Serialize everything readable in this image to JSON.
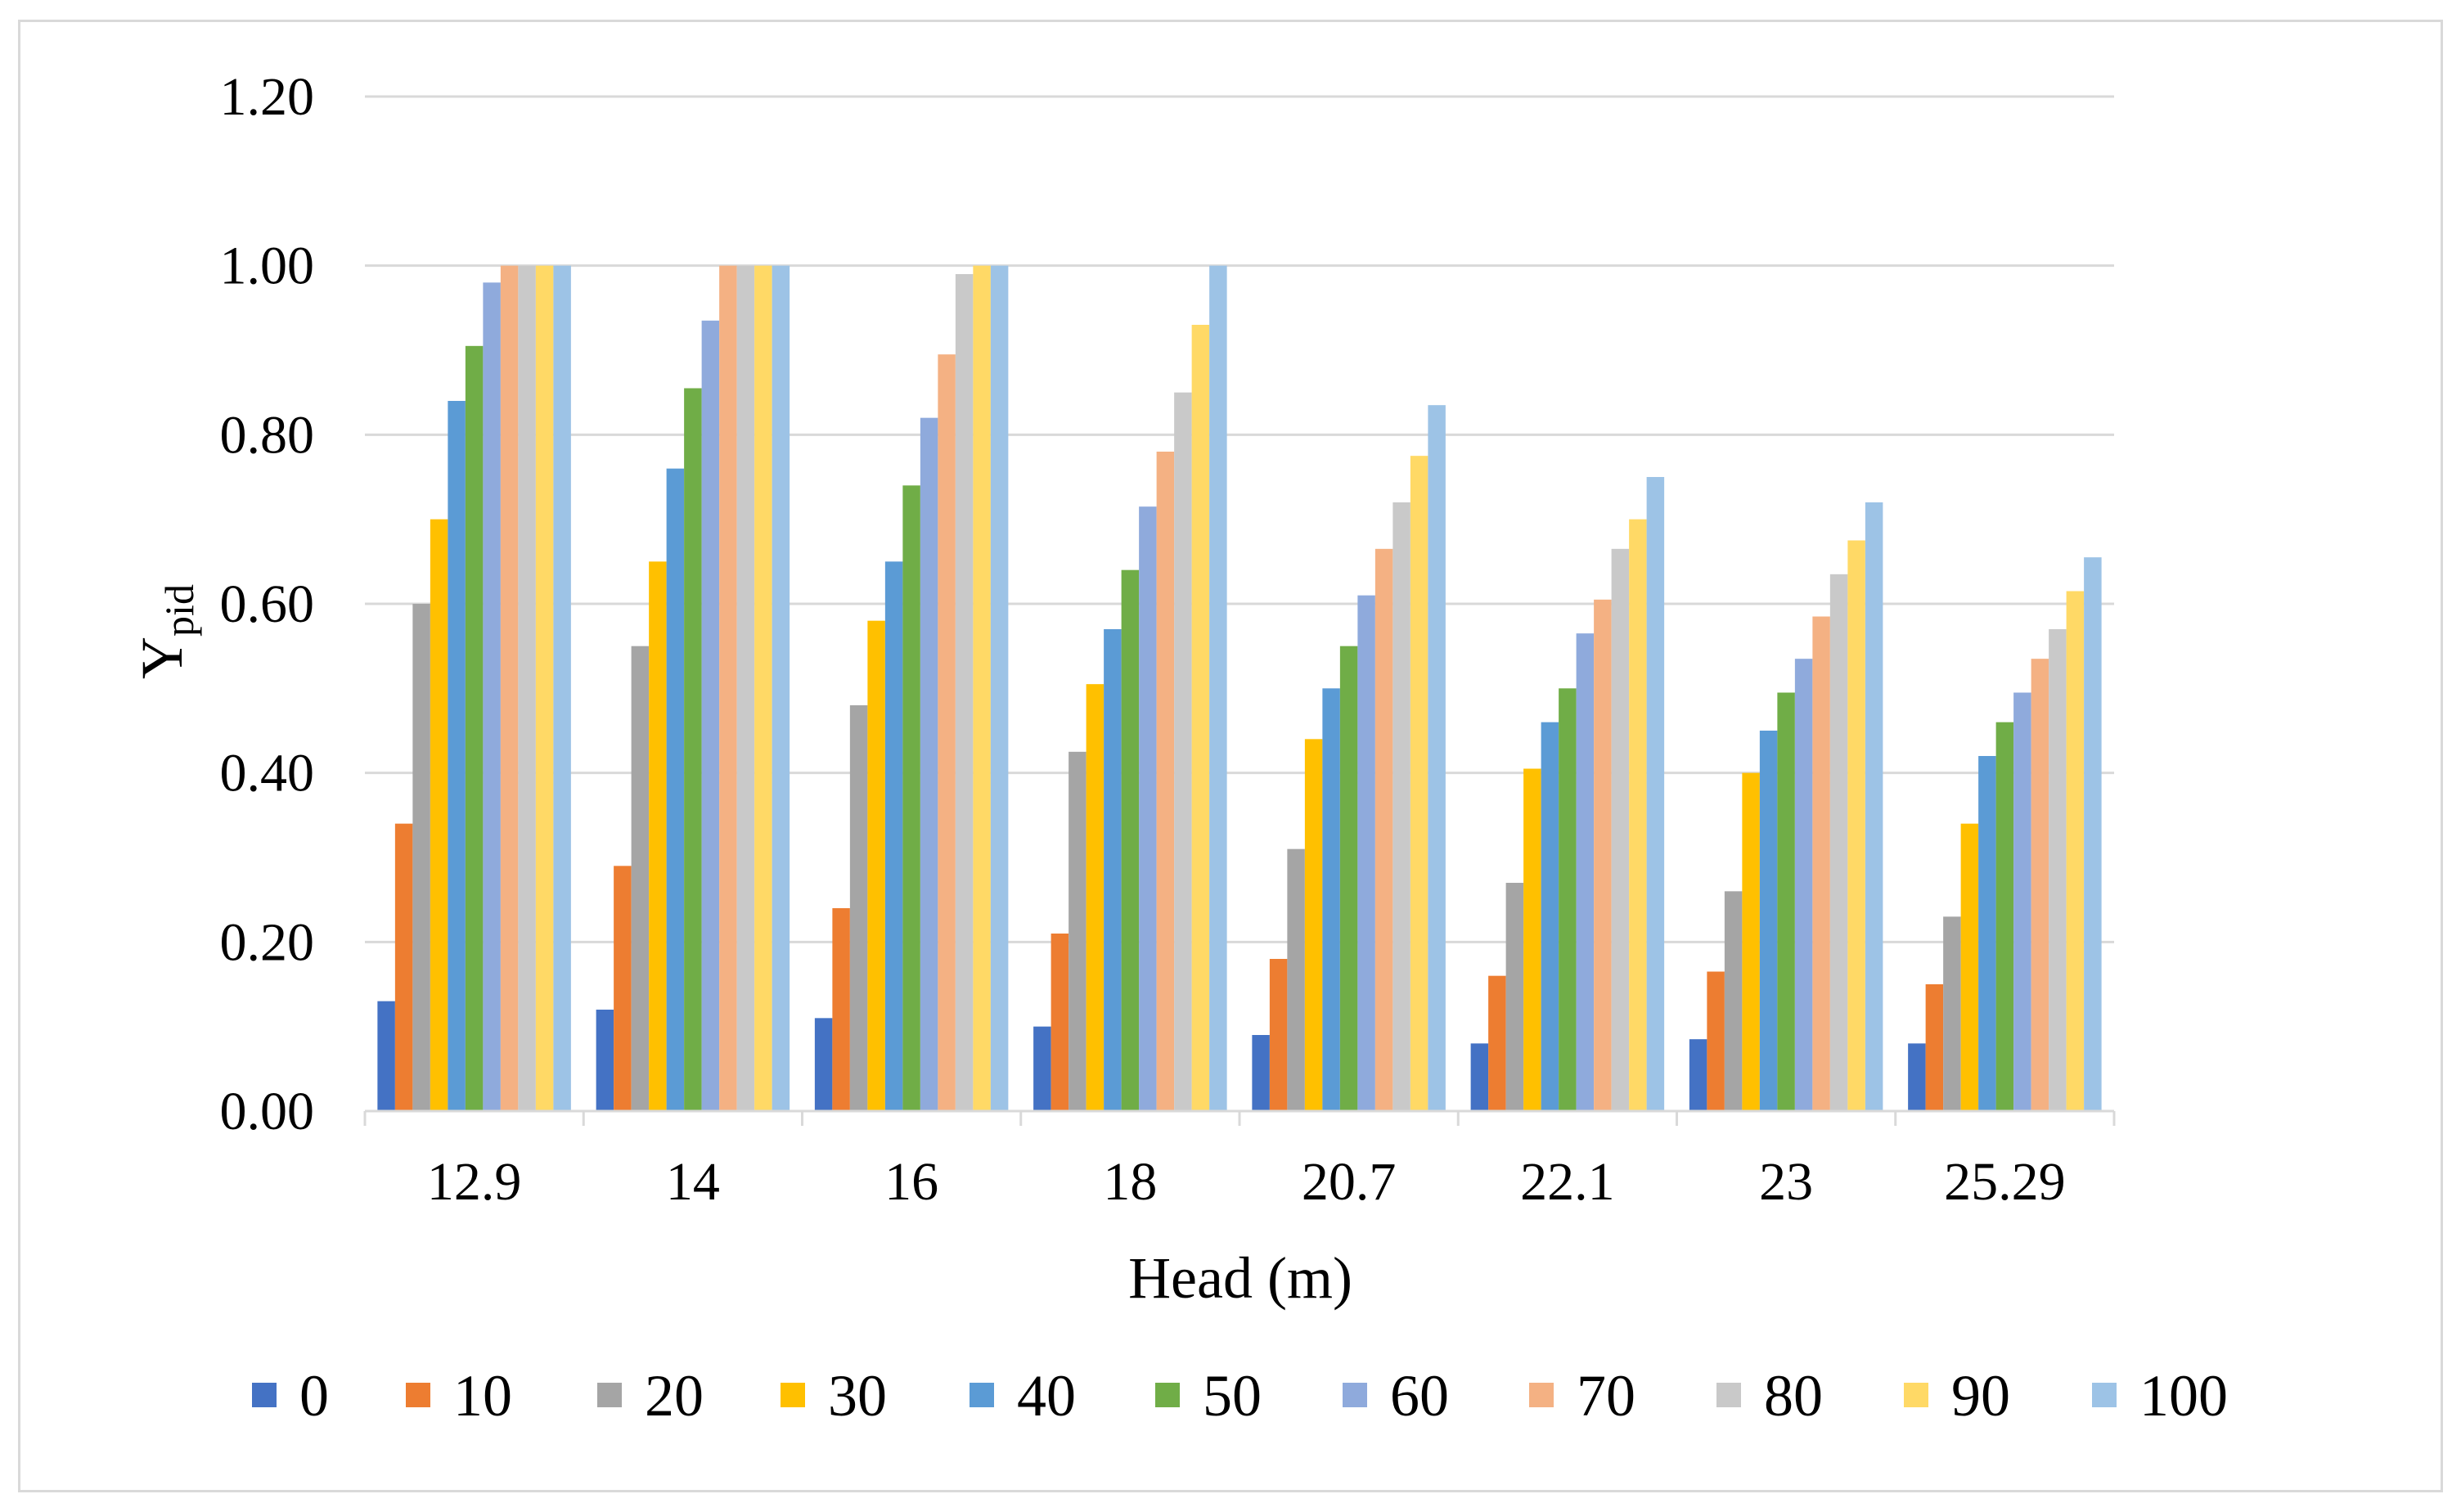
{
  "chart_data": {
    "type": "bar",
    "title": "",
    "xlabel": "Head (m)",
    "ylabel": {
      "main": "Y",
      "subscript": "pid"
    },
    "ylim": [
      0,
      1.2
    ],
    "yticks": [
      "0.00",
      "0.20",
      "0.40",
      "0.60",
      "0.80",
      "1.00",
      "1.20"
    ],
    "ytick_values": [
      0,
      0.2,
      0.4,
      0.6,
      0.8,
      1.0,
      1.2
    ],
    "grid": true,
    "legend_position": "bottom",
    "categories": [
      "12.9",
      "14",
      "16",
      "18",
      "20.7",
      "22.1",
      "23",
      "25.29"
    ],
    "series": [
      {
        "name": "0",
        "color": "#4472C4",
        "values": [
          0.13,
          0.12,
          0.11,
          0.1,
          0.09,
          0.08,
          0.085,
          0.08
        ]
      },
      {
        "name": "10",
        "color": "#ED7D31",
        "values": [
          0.34,
          0.29,
          0.24,
          0.21,
          0.18,
          0.16,
          0.165,
          0.15
        ]
      },
      {
        "name": "20",
        "color": "#A5A5A5",
        "values": [
          0.6,
          0.55,
          0.48,
          0.425,
          0.31,
          0.27,
          0.26,
          0.23
        ]
      },
      {
        "name": "30",
        "color": "#FFC000",
        "values": [
          0.7,
          0.65,
          0.58,
          0.505,
          0.44,
          0.405,
          0.4,
          0.34
        ]
      },
      {
        "name": "40",
        "color": "#5B9BD5",
        "values": [
          0.84,
          0.76,
          0.65,
          0.57,
          0.5,
          0.46,
          0.45,
          0.42
        ]
      },
      {
        "name": "50",
        "color": "#70AD47",
        "values": [
          0.905,
          0.855,
          0.74,
          0.64,
          0.55,
          0.5,
          0.495,
          0.46
        ]
      },
      {
        "name": "60",
        "color": "#8FAADC",
        "values": [
          0.98,
          0.935,
          0.82,
          0.715,
          0.61,
          0.565,
          0.535,
          0.495
        ]
      },
      {
        "name": "70",
        "color": "#F4B183",
        "values": [
          1.0,
          1.0,
          0.895,
          0.78,
          0.665,
          0.605,
          0.585,
          0.535
        ]
      },
      {
        "name": "80",
        "color": "#C9C9C9",
        "values": [
          1.0,
          1.0,
          0.99,
          0.85,
          0.72,
          0.665,
          0.635,
          0.57
        ]
      },
      {
        "name": "90",
        "color": "#FFD966",
        "values": [
          1.0,
          1.0,
          1.0,
          0.93,
          0.775,
          0.7,
          0.675,
          0.615
        ]
      },
      {
        "name": "100",
        "color": "#9DC3E6",
        "values": [
          1.0,
          1.0,
          1.0,
          1.0,
          0.835,
          0.75,
          0.72,
          0.655
        ]
      }
    ]
  }
}
